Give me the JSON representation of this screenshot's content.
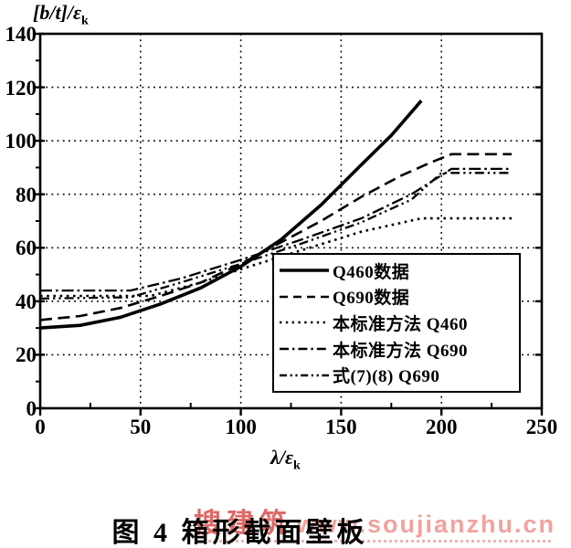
{
  "figure": {
    "caption": "图 4  箱形截面壁板",
    "watermark": {
      "brand": "搜建筑",
      "url": "www.soujianzhu.cn",
      "brand_color": "#dc6a66",
      "url_color": "#f2a29e"
    },
    "line_color": "#000000",
    "background_color": "#ffffff"
  },
  "chart_data": {
    "type": "line",
    "title": "",
    "xlabel": "λ/ε",
    "xlabel_sub": "k",
    "ylabel": "[b/t]/ε",
    "ylabel_sub": "k",
    "xlim": [
      0,
      250
    ],
    "ylim": [
      0,
      140
    ],
    "x_ticks": [
      0,
      50,
      100,
      150,
      200,
      250
    ],
    "y_ticks": [
      0,
      20,
      40,
      60,
      80,
      100,
      120,
      140
    ],
    "x_minor_step": 25,
    "y_minor_step": 10,
    "grid": "dotted lines at major ticks (x: 50,100,150,200; y: 20,40,60,80,100,120)",
    "legend_position": "inside lower right",
    "series": [
      {
        "name": "Q460数据",
        "style": "solid",
        "width": 3.6,
        "points": [
          [
            0,
            30
          ],
          [
            20,
            31
          ],
          [
            40,
            34
          ],
          [
            60,
            39
          ],
          [
            80,
            45
          ],
          [
            100,
            53
          ],
          [
            120,
            63
          ],
          [
            140,
            76
          ],
          [
            160,
            91
          ],
          [
            175,
            102
          ],
          [
            190,
            115
          ]
        ]
      },
      {
        "name": "Q690数据",
        "style": "dashed",
        "width": 2.6,
        "points": [
          [
            0,
            33
          ],
          [
            20,
            34.5
          ],
          [
            40,
            37.5
          ],
          [
            60,
            42
          ],
          [
            80,
            47
          ],
          [
            100,
            54
          ],
          [
            120,
            62
          ],
          [
            140,
            70
          ],
          [
            160,
            79
          ],
          [
            180,
            87
          ],
          [
            195,
            92
          ],
          [
            205,
            95
          ],
          [
            235,
            95
          ]
        ]
      },
      {
        "name": "本标准方法 Q460",
        "style": "dotted",
        "width": 2.6,
        "points": [
          [
            0,
            42
          ],
          [
            55,
            42
          ],
          [
            80,
            47
          ],
          [
            100,
            52
          ],
          [
            130,
            59
          ],
          [
            160,
            66
          ],
          [
            190,
            71
          ],
          [
            235,
            71
          ]
        ]
      },
      {
        "name": "本标准方法 Q690",
        "style": "dashdot",
        "width": 2.3,
        "points": [
          [
            0,
            44
          ],
          [
            45,
            44
          ],
          [
            70,
            48.5
          ],
          [
            100,
            55.5
          ],
          [
            130,
            63
          ],
          [
            160,
            71
          ],
          [
            185,
            80
          ],
          [
            205,
            89.5
          ],
          [
            235,
            89.5
          ]
        ]
      },
      {
        "name": "式(7)(8) Q690",
        "style": "dashdotdot",
        "width": 2.3,
        "points": [
          [
            0,
            41
          ],
          [
            45,
            41.5
          ],
          [
            70,
            47
          ],
          [
            100,
            54
          ],
          [
            130,
            61.5
          ],
          [
            160,
            69.5
          ],
          [
            185,
            78
          ],
          [
            200,
            88
          ],
          [
            235,
            88
          ]
        ]
      }
    ]
  }
}
